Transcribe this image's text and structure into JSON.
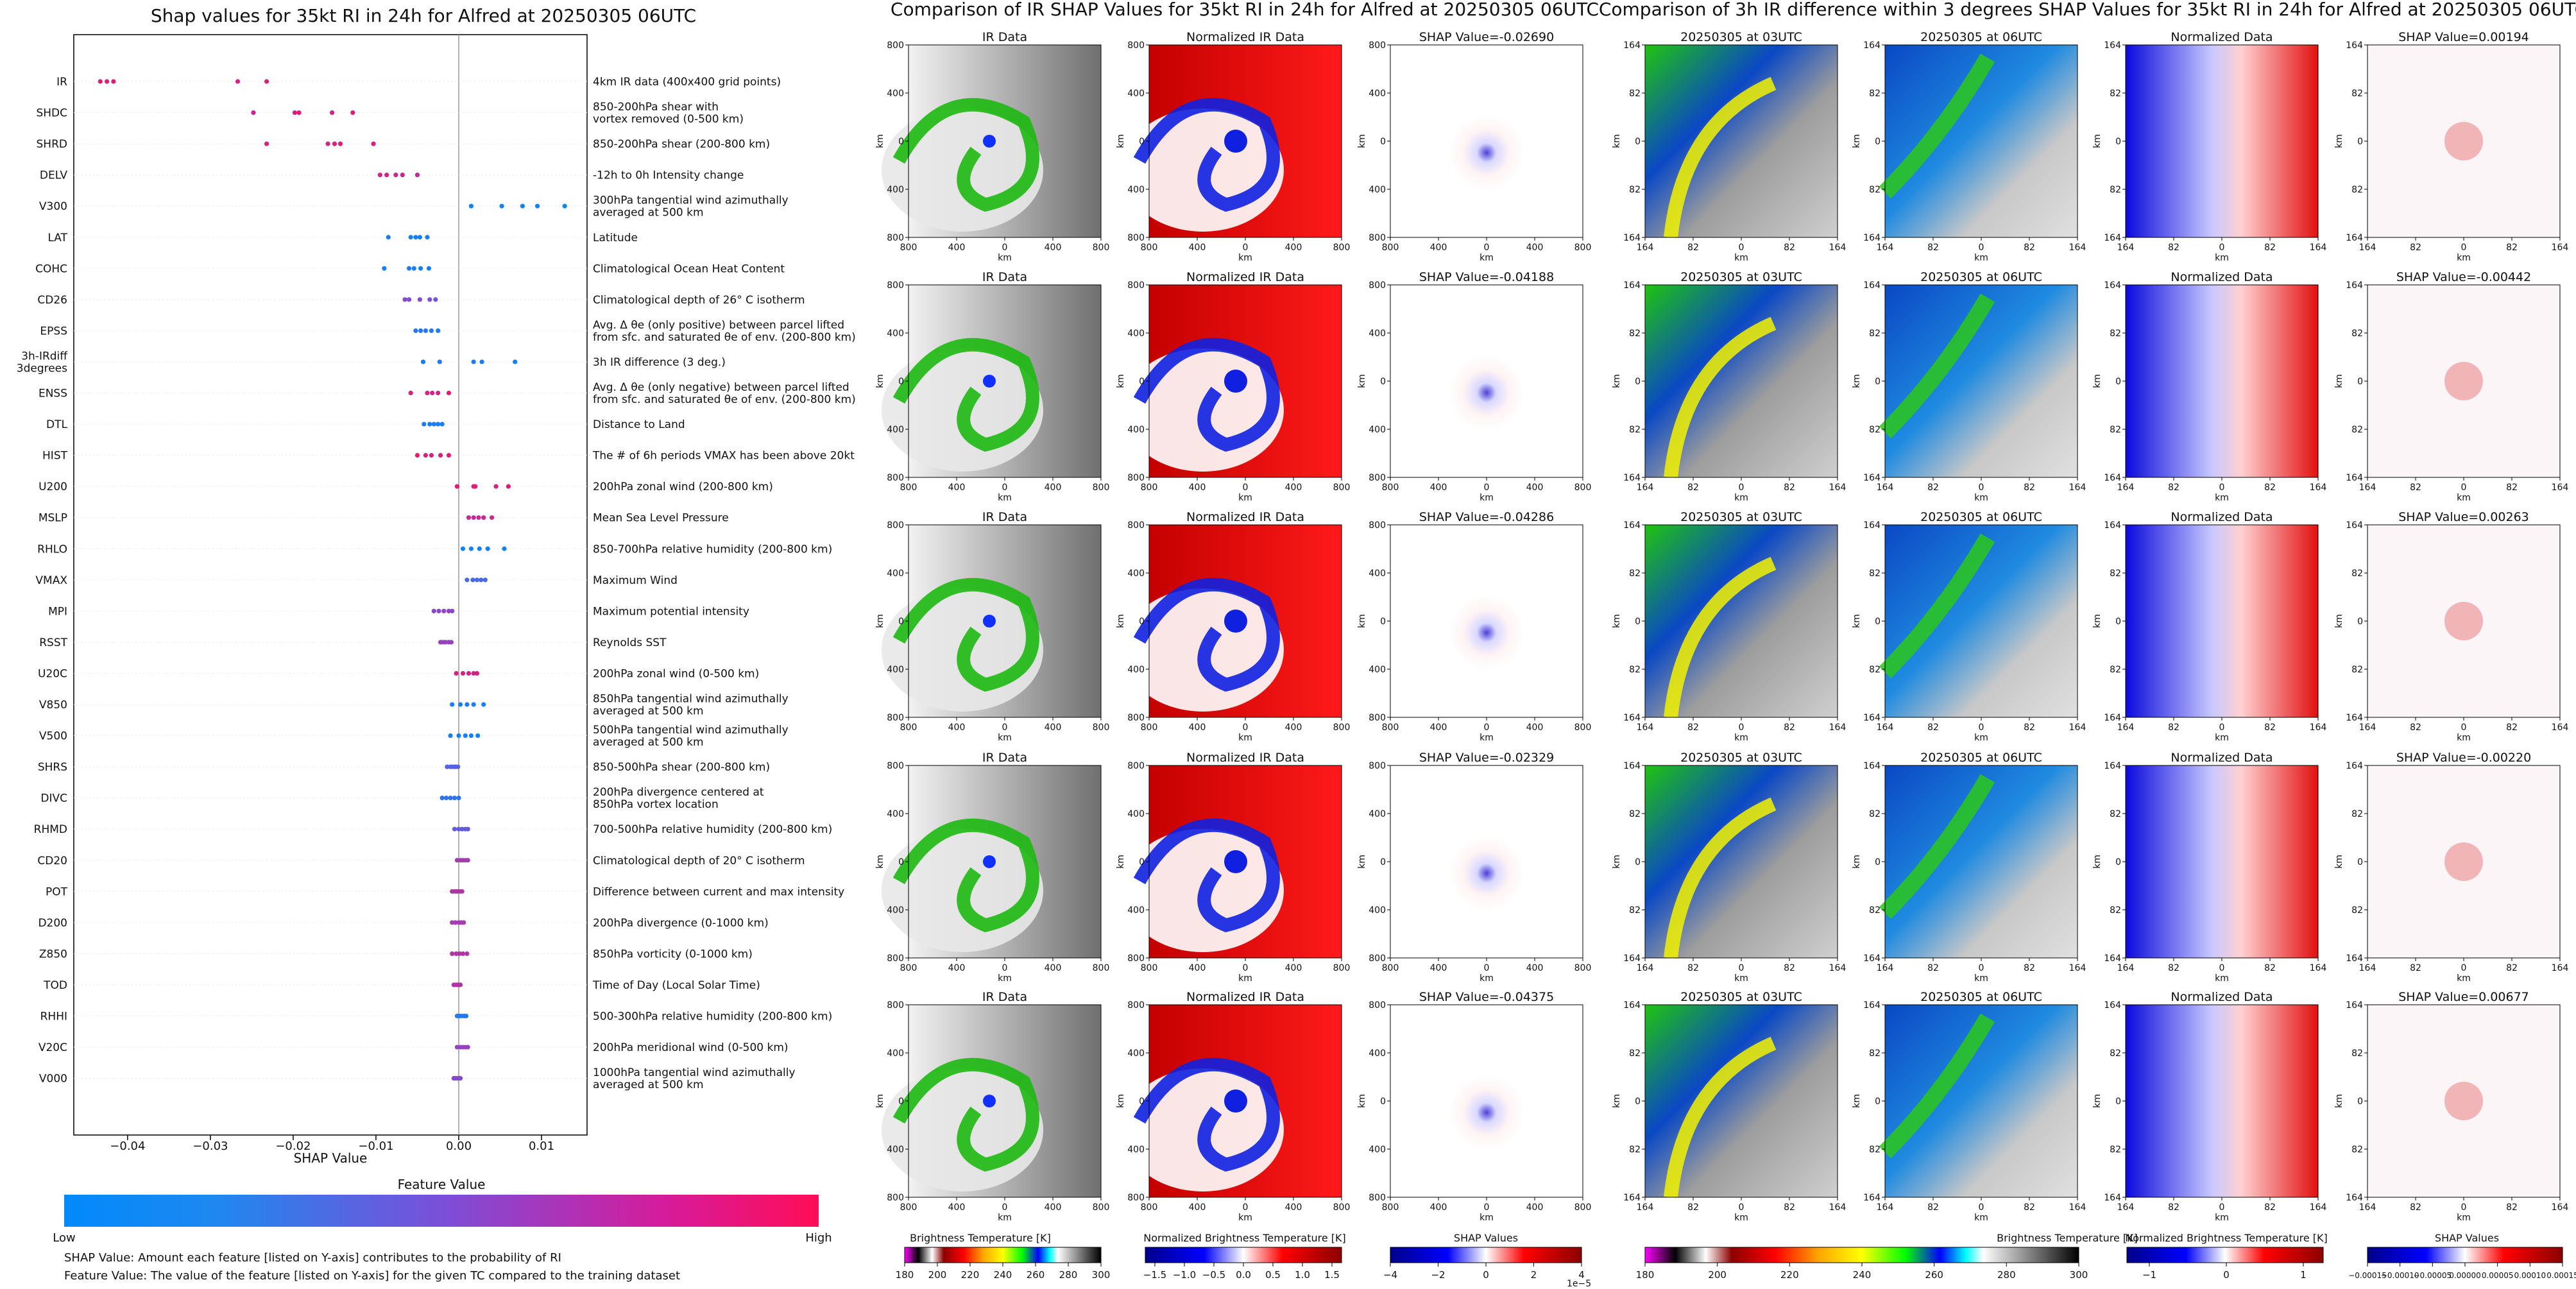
{
  "left_panel": {
    "title": "Shap values for 35kt RI in 24h for Alfred at 20250305 06UTC",
    "xlabel": "SHAP Value",
    "colorbar_title": "Feature Value",
    "colorbar_low": "Low",
    "colorbar_high": "High",
    "footnote1": "SHAP Value: Amount each feature [listed on Y-axis] contributes to the probability of RI",
    "footnote2": "Feature Value: The value of the feature [listed on Y-axis] for the given TC compared to the training dataset"
  },
  "chart_data": {
    "type": "scatter",
    "title": "Shap values for 35kt RI in 24h for Alfred at 20250305 06UTC",
    "xlabel": "SHAP Value",
    "xlim": [
      -0.0465,
      0.0155
    ],
    "xticks": [
      -0.04,
      -0.03,
      -0.02,
      -0.01,
      0.0,
      0.01
    ],
    "xtick_labels": [
      "−0.04",
      "−0.03",
      "−0.02",
      "−0.01",
      "0.00",
      "0.01"
    ],
    "features": [
      {
        "name": "IR",
        "desc": "4km IR data (400x400 grid points)",
        "points": [
          [
            -0.0433,
            0.9
          ],
          [
            -0.0425,
            0.85
          ],
          [
            -0.0417,
            0.88
          ],
          [
            -0.0267,
            0.82
          ],
          [
            -0.0232,
            0.86
          ]
        ]
      },
      {
        "name": "SHDC",
        "desc": "850-200hPa shear with\nvortex removed (0-500 km)",
        "points": [
          [
            -0.0248,
            0.8
          ],
          [
            -0.0198,
            0.85
          ],
          [
            -0.0193,
            0.88
          ],
          [
            -0.0153,
            0.82
          ],
          [
            -0.0128,
            0.86
          ]
        ]
      },
      {
        "name": "SHRD",
        "desc": "850-200hPa shear (200-800 km)",
        "points": [
          [
            -0.0232,
            0.85
          ],
          [
            -0.0158,
            0.82
          ],
          [
            -0.015,
            0.86
          ],
          [
            -0.0143,
            0.9
          ],
          [
            -0.0103,
            0.84
          ]
        ]
      },
      {
        "name": "DELV",
        "desc": "-12h to 0h Intensity change",
        "points": [
          [
            -0.0095,
            0.82
          ],
          [
            -0.0087,
            0.85
          ],
          [
            -0.0076,
            0.78
          ],
          [
            -0.0068,
            0.8
          ],
          [
            -0.005,
            0.75
          ]
        ]
      },
      {
        "name": "V300",
        "desc": "300hPa tangential wind azimuthally\naveraged at 500 km",
        "points": [
          [
            0.0015,
            0.05
          ],
          [
            0.0052,
            0.05
          ],
          [
            0.0077,
            0.05
          ],
          [
            0.0095,
            0.05
          ],
          [
            0.0128,
            0.05
          ]
        ]
      },
      {
        "name": "LAT",
        "desc": "Latitude",
        "points": [
          [
            -0.0085,
            0.1
          ],
          [
            -0.0058,
            0.1
          ],
          [
            -0.0052,
            0.1
          ],
          [
            -0.0047,
            0.1
          ],
          [
            -0.0038,
            0.1
          ]
        ]
      },
      {
        "name": "COHC",
        "desc": "Climatological Ocean Heat Content",
        "points": [
          [
            -0.009,
            0.12
          ],
          [
            -0.006,
            0.1
          ],
          [
            -0.0054,
            0.1
          ],
          [
            -0.0046,
            0.1
          ],
          [
            -0.0036,
            0.1
          ]
        ]
      },
      {
        "name": "CD26",
        "desc": "Climatological depth of 26° C isotherm",
        "points": [
          [
            -0.0065,
            0.55
          ],
          [
            -0.006,
            0.5
          ],
          [
            -0.0047,
            0.5
          ],
          [
            -0.0035,
            0.5
          ],
          [
            -0.0028,
            0.45
          ]
        ]
      },
      {
        "name": "EPSS",
        "desc": "Avg. Δ θe (only positive) between parcel lifted\nfrom sfc. and saturated θe of env. (200-800 km)",
        "points": [
          [
            -0.0052,
            0.15
          ],
          [
            -0.0046,
            0.15
          ],
          [
            -0.004,
            0.15
          ],
          [
            -0.0033,
            0.15
          ],
          [
            -0.0025,
            0.15
          ]
        ]
      },
      {
        "name": "3h-IRdiff\n3degrees",
        "desc": "3h IR difference (3 deg.)",
        "points": [
          [
            -0.0043,
            0.1
          ],
          [
            -0.0023,
            0.1
          ],
          [
            0.0018,
            0.1
          ],
          [
            0.0028,
            0.1
          ],
          [
            0.0068,
            0.1
          ]
        ]
      },
      {
        "name": "ENSS",
        "desc": "Avg. Δ θe (only negative) between parcel lifted\nfrom sfc. and saturated θe of env. (200-800 km)",
        "points": [
          [
            -0.0058,
            0.85
          ],
          [
            -0.0038,
            0.85
          ],
          [
            -0.0032,
            0.85
          ],
          [
            -0.0025,
            0.8
          ],
          [
            -0.0012,
            0.9
          ]
        ]
      },
      {
        "name": "DTL",
        "desc": "Distance to Land",
        "points": [
          [
            -0.0042,
            0.1
          ],
          [
            -0.0035,
            0.1
          ],
          [
            -0.003,
            0.1
          ],
          [
            -0.0025,
            0.1
          ],
          [
            -0.002,
            0.1
          ]
        ]
      },
      {
        "name": "HIST",
        "desc": "The # of 6h periods VMAX has been above 20kt",
        "points": [
          [
            -0.005,
            0.88
          ],
          [
            -0.004,
            0.85
          ],
          [
            -0.0033,
            0.82
          ],
          [
            -0.0022,
            0.86
          ],
          [
            -0.0012,
            0.9
          ]
        ]
      },
      {
        "name": "U200",
        "desc": "200hPa zonal wind (200-800 km)",
        "points": [
          [
            -0.0002,
            0.9
          ],
          [
            0.0018,
            0.85
          ],
          [
            0.002,
            0.88
          ],
          [
            0.0045,
            0.82
          ],
          [
            0.006,
            0.88
          ]
        ]
      },
      {
        "name": "MSLP",
        "desc": "Mean Sea Level Pressure",
        "points": [
          [
            0.0012,
            0.78
          ],
          [
            0.0018,
            0.78
          ],
          [
            0.0024,
            0.76
          ],
          [
            0.003,
            0.8
          ],
          [
            0.004,
            0.78
          ]
        ]
      },
      {
        "name": "RHLO",
        "desc": "850-700hPa relative humidity (200-800 km)",
        "points": [
          [
            0.0005,
            0.08
          ],
          [
            0.0015,
            0.08
          ],
          [
            0.0025,
            0.08
          ],
          [
            0.0035,
            0.08
          ],
          [
            0.0055,
            0.08
          ]
        ]
      },
      {
        "name": "VMAX",
        "desc": "Maximum Wind",
        "points": [
          [
            0.001,
            0.3
          ],
          [
            0.0017,
            0.3
          ],
          [
            0.0022,
            0.3
          ],
          [
            0.0027,
            0.3
          ],
          [
            0.0032,
            0.3
          ]
        ]
      },
      {
        "name": "MPI",
        "desc": "Maximum potential intensity",
        "points": [
          [
            -0.003,
            0.55
          ],
          [
            -0.0024,
            0.55
          ],
          [
            -0.0018,
            0.55
          ],
          [
            -0.0012,
            0.6
          ],
          [
            -0.0008,
            0.55
          ]
        ]
      },
      {
        "name": "RSST",
        "desc": "Reynolds SST",
        "points": [
          [
            -0.0022,
            0.6
          ],
          [
            -0.0019,
            0.6
          ],
          [
            -0.0016,
            0.6
          ],
          [
            -0.0012,
            0.6
          ],
          [
            -0.0009,
            0.6
          ]
        ]
      },
      {
        "name": "U20C",
        "desc": "200hPa zonal wind (0-500 km)",
        "points": [
          [
            -0.0003,
            0.85
          ],
          [
            0.0005,
            0.85
          ],
          [
            0.0012,
            0.85
          ],
          [
            0.0018,
            0.8
          ],
          [
            0.0022,
            0.85
          ]
        ]
      },
      {
        "name": "V850",
        "desc": "850hPa tangential wind azimuthally\naveraged at 500 km",
        "points": [
          [
            -0.0008,
            0.1
          ],
          [
            0.0002,
            0.1
          ],
          [
            0.001,
            0.1
          ],
          [
            0.0018,
            0.1
          ],
          [
            0.003,
            0.1
          ]
        ]
      },
      {
        "name": "V500",
        "desc": "500hPa tangential wind azimuthally\naveraged at 500 km",
        "points": [
          [
            -0.001,
            0.1
          ],
          [
            0.0,
            0.1
          ],
          [
            0.0008,
            0.1
          ],
          [
            0.0015,
            0.1
          ],
          [
            0.0023,
            0.1
          ]
        ]
      },
      {
        "name": "SHRS",
        "desc": "850-500hPa shear (200-800 km)",
        "points": [
          [
            -0.0014,
            0.35
          ],
          [
            -0.001,
            0.35
          ],
          [
            -0.0007,
            0.35
          ],
          [
            -0.0004,
            0.35
          ],
          [
            -0.0001,
            0.35
          ]
        ]
      },
      {
        "name": "DIVC",
        "desc": "200hPa divergence centered at\n850hPa vortex location",
        "points": [
          [
            -0.002,
            0.2
          ],
          [
            -0.0015,
            0.2
          ],
          [
            -0.001,
            0.2
          ],
          [
            -0.0005,
            0.2
          ],
          [
            0.0,
            0.2
          ]
        ]
      },
      {
        "name": "RHMD",
        "desc": "700-500hPa relative humidity (200-800 km)",
        "points": [
          [
            -0.0005,
            0.4
          ],
          [
            0.0,
            0.4
          ],
          [
            0.0004,
            0.4
          ],
          [
            0.0008,
            0.4
          ],
          [
            0.0011,
            0.4
          ]
        ]
      },
      {
        "name": "CD20",
        "desc": "Climatological depth of 20° C isotherm",
        "points": [
          [
            -0.0002,
            0.65
          ],
          [
            0.0002,
            0.65
          ],
          [
            0.0005,
            0.65
          ],
          [
            0.0008,
            0.65
          ],
          [
            0.0011,
            0.65
          ]
        ]
      },
      {
        "name": "POT",
        "desc": "Difference between current and max intensity",
        "points": [
          [
            -0.0008,
            0.7
          ],
          [
            -0.0005,
            0.7
          ],
          [
            -0.0002,
            0.7
          ],
          [
            0.0001,
            0.7
          ],
          [
            0.0004,
            0.7
          ]
        ]
      },
      {
        "name": "D200",
        "desc": "200hPa divergence (0-1000 km)",
        "points": [
          [
            -0.0008,
            0.65
          ],
          [
            -0.0004,
            0.65
          ],
          [
            0.0,
            0.65
          ],
          [
            0.0003,
            0.65
          ],
          [
            0.0006,
            0.65
          ]
        ]
      },
      {
        "name": "Z850",
        "desc": "850hPa vorticity (0-1000 km)",
        "points": [
          [
            -0.0008,
            0.7
          ],
          [
            -0.0003,
            0.7
          ],
          [
            0.0001,
            0.7
          ],
          [
            0.0005,
            0.7
          ],
          [
            0.001,
            0.7
          ]
        ]
      },
      {
        "name": "TOD",
        "desc": "Time of Day (Local Solar Time)",
        "points": [
          [
            -0.0006,
            0.7
          ],
          [
            -0.0004,
            0.7
          ],
          [
            -0.0002,
            0.7
          ],
          [
            0.0,
            0.7
          ],
          [
            0.0002,
            0.7
          ]
        ]
      },
      {
        "name": "RHHI",
        "desc": "500-300hPa relative humidity (200-800 km)",
        "points": [
          [
            -0.0002,
            0.15
          ],
          [
            0.0001,
            0.15
          ],
          [
            0.0004,
            0.15
          ],
          [
            0.0007,
            0.15
          ],
          [
            0.0009,
            0.15
          ]
        ]
      },
      {
        "name": "V20C",
        "desc": "200hPa meridional wind (0-500 km)",
        "points": [
          [
            -0.0002,
            0.6
          ],
          [
            0.0002,
            0.6
          ],
          [
            0.0005,
            0.6
          ],
          [
            0.0008,
            0.6
          ],
          [
            0.0011,
            0.6
          ]
        ]
      },
      {
        "name": "V000",
        "desc": "1000hPa tangential wind azimuthally\naveraged at 500 km",
        "points": [
          [
            -0.0006,
            0.55
          ],
          [
            -0.0004,
            0.55
          ],
          [
            -0.0002,
            0.55
          ],
          [
            0.0,
            0.55
          ],
          [
            0.0002,
            0.55
          ]
        ]
      }
    ]
  },
  "mid_panel": {
    "title": "Comparison of IR SHAP Values for 35kt RI in 24h for Alfred at 20250305 06UTC",
    "col_titles": [
      "IR Data",
      "Normalized IR Data"
    ],
    "shap_titles": [
      "SHAP Value=-0.02690",
      "SHAP Value=-0.04188",
      "SHAP Value=-0.04286",
      "SHAP Value=-0.02329",
      "SHAP Value=-0.04375"
    ],
    "axis_label": "km",
    "ticks": [
      "800",
      "400",
      "0",
      "400",
      "800"
    ],
    "cbar_labels": [
      "Brightness Temperature [K]",
      "Normalized Brightness Temperature [K]",
      "SHAP Values"
    ],
    "cbar1_ticks": [
      "180",
      "200",
      "220",
      "240",
      "260",
      "280",
      "300"
    ],
    "cbar2_ticks": [
      "−1.5",
      "−1.0",
      "−0.5",
      "0.0",
      "0.5",
      "1.0",
      "1.5"
    ],
    "cbar3_ticks": [
      "−4",
      "−2",
      "0",
      "2",
      "4"
    ],
    "cbar3_offset": "1e−5"
  },
  "right_panel": {
    "title": "Comparison of 3h IR difference within 3 degrees SHAP Values for 35kt RI in 24h for Alfred at 20250305 06UTC",
    "col_titles": [
      "20250305 at 03UTC",
      "20250305 at 06UTC",
      "Normalized Data"
    ],
    "shap_titles": [
      "SHAP Value=0.00194",
      "SHAP Value=-0.00442",
      "SHAP Value=0.00263",
      "SHAP Value=-0.00220",
      "SHAP Value=0.00677"
    ],
    "axis_label": "km",
    "ticks": [
      "164",
      "82",
      "0",
      "82",
      "164"
    ],
    "cbar_labels": [
      "Brightness Temperature [K]",
      "Normalized Brightness Temperature [K]",
      "SHAP Values"
    ],
    "cbar1_ticks": [
      "180",
      "200",
      "220",
      "240",
      "260",
      "280",
      "300"
    ],
    "cbar2_ticks": [
      "−1",
      "0",
      "1"
    ],
    "cbar3_ticks": [
      "−0.00015",
      "−0.00010",
      "−0.00005",
      "0.00000",
      "0.00005",
      "0.00010",
      "0.00015"
    ]
  }
}
